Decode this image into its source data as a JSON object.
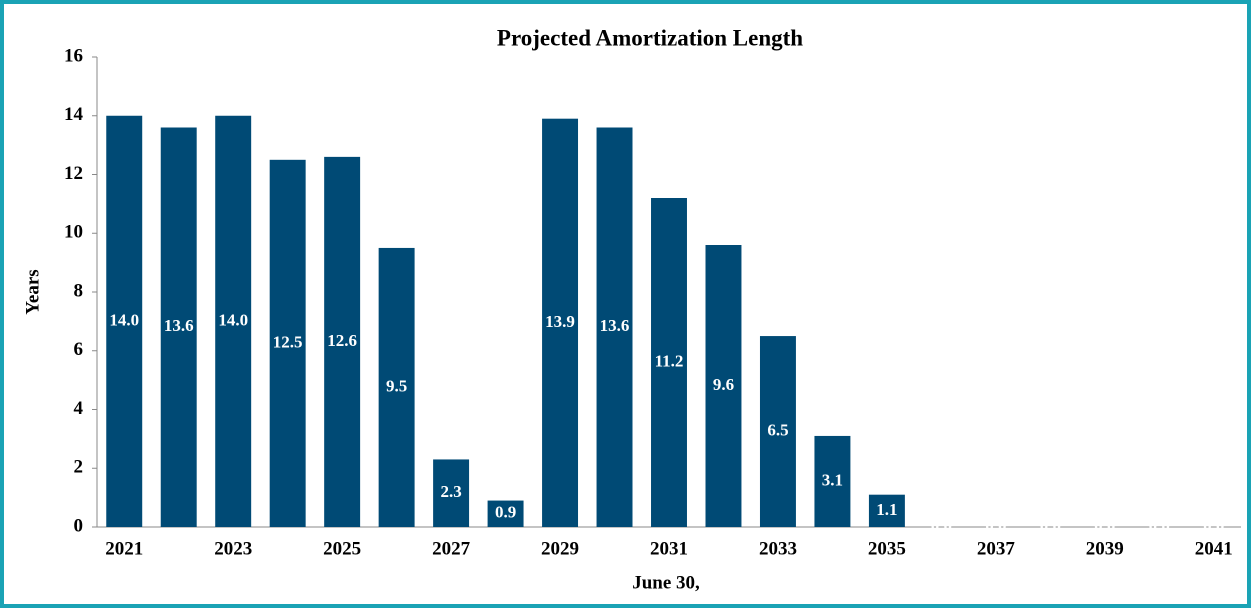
{
  "chart_data": {
    "type": "bar",
    "title": "Projected Amortization  Length",
    "x_label": "June 30,",
    "y_label": "Years",
    "categories": [
      "2021",
      null,
      "2023",
      null,
      "2025",
      null,
      "2027",
      null,
      "2029",
      null,
      "2031",
      null,
      "2033",
      null,
      "2035",
      null,
      "2037",
      null,
      "2039",
      null,
      "2041"
    ],
    "values": [
      14.0,
      13.6,
      14.0,
      12.5,
      12.6,
      9.5,
      2.3,
      0.9,
      13.9,
      13.6,
      11.2,
      9.6,
      6.5,
      3.1,
      1.1,
      0.0,
      0.0,
      0.0,
      0.0,
      0.0,
      0.0
    ],
    "value_labels": [
      "14.0",
      "13.6",
      "14.0",
      "12.5",
      "12.6",
      "9.5",
      "2.3",
      "0.9",
      "13.9",
      "13.6",
      "11.2",
      "9.6",
      "6.5",
      "3.1",
      "1.1",
      "0.0",
      "0.0",
      "0.0",
      "0.0",
      "0.0",
      "0.0"
    ],
    "color": "#004a75",
    "ylim": [
      0,
      16
    ],
    "yticks": [
      0,
      2,
      4,
      6,
      8,
      10,
      12,
      14,
      16
    ],
    "grid": false
  }
}
